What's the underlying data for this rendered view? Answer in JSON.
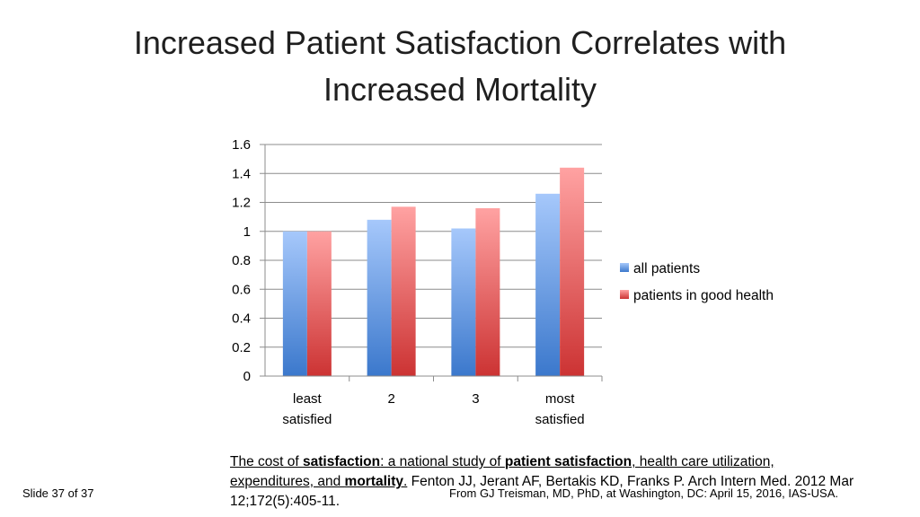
{
  "slide": {
    "title_line1": "Increased Patient Satisfaction Correlates with",
    "title_line2": "Increased Mortality",
    "slide_number_text": "Slide 37 of 37",
    "attribution": "From GJ Treisman, MD, PhD, at Washington, DC: April 15, 2016, IAS-USA."
  },
  "citation": {
    "part1": "The cost of ",
    "bold1": "satisfaction",
    "part2": ": a national study of ",
    "bold2": "patient satisfaction",
    "part3": ", health care utilization, expenditures, and ",
    "bold3": "mortality",
    "part4": ".",
    "rest": " Fenton JJ, Jerant AF, Bertakis KD, Franks P. Arch Intern Med. 2012 Mar 12;172(5):405-11."
  },
  "chart_data": {
    "type": "bar",
    "title": "",
    "xlabel": "",
    "ylabel": "",
    "categories": [
      [
        "least",
        "satisfied"
      ],
      [
        "2"
      ],
      [
        "3"
      ],
      [
        "most",
        "satisfied"
      ]
    ],
    "series": [
      {
        "name": "all patients",
        "values": [
          1.0,
          1.08,
          1.02,
          1.26
        ],
        "color_top": "#a6c8fb",
        "color_bottom": "#3b78cc"
      },
      {
        "name": "patients in good health",
        "values": [
          1.0,
          1.17,
          1.16,
          1.44
        ],
        "color_top": "#ffa2a2",
        "color_bottom": "#cc3333"
      }
    ],
    "ylim": [
      0,
      1.6
    ],
    "yticks": [
      "0",
      "0.2",
      "0.4",
      "0.6",
      "0.8",
      "1",
      "1.2",
      "1.4",
      "1.6"
    ],
    "grid": true,
    "legend_position": "right"
  }
}
